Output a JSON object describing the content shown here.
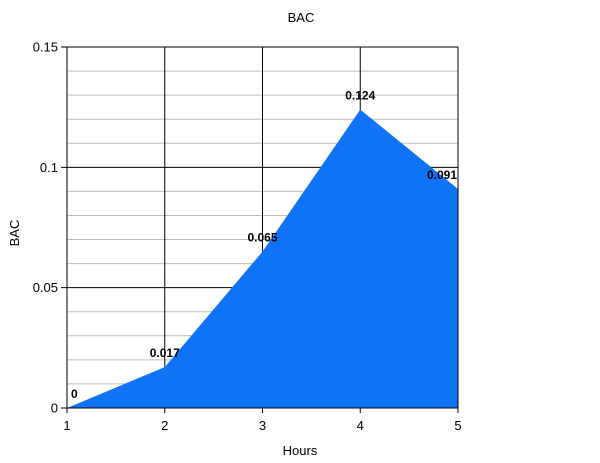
{
  "chart_data": {
    "type": "area",
    "title": "BAC",
    "xlabel": "Hours",
    "ylabel": "BAC",
    "x": [
      1,
      2,
      3,
      4,
      5
    ],
    "x_tick_labels": [
      "1",
      "2",
      "3",
      "4",
      "5"
    ],
    "y_tick_labels": [
      "0",
      "0.05",
      "0.1",
      "0.15"
    ],
    "y_ticks": [
      0,
      0.05,
      0.1,
      0.15
    ],
    "series": [
      {
        "values": [
          0,
          0.017,
          0.065,
          0.124,
          0.091
        ],
        "data_labels": [
          "0",
          "0.017",
          "0.065",
          "0.124",
          "0.091"
        ],
        "color": "#0f73f5"
      }
    ],
    "xlim": [
      1,
      5
    ],
    "ylim": [
      0,
      0.15
    ],
    "y_minor_step": 0.01,
    "grid": true,
    "legend": "none"
  }
}
